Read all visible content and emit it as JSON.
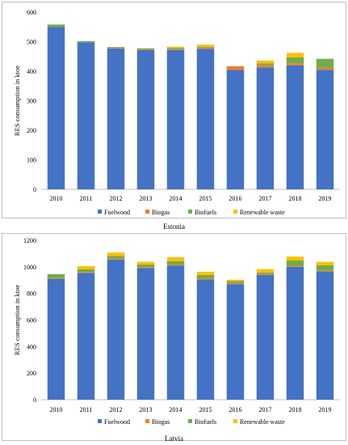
{
  "chart_data": [
    {
      "type": "bar",
      "stacked": true,
      "caption": "Estonia",
      "title": "",
      "xlabel": "",
      "ylabel": "RES consumption in ktoe",
      "ylim": [
        0,
        600
      ],
      "yticks": [
        0,
        100,
        200,
        300,
        400,
        500,
        600
      ],
      "grid": false,
      "legend_position": "bottom",
      "categories": [
        "2010",
        "2011",
        "2012",
        "2013",
        "2014",
        "2015",
        "2016",
        "2017",
        "2018",
        "2019"
      ],
      "series": [
        {
          "name": "Fuelwood",
          "color": "#4472c4",
          "values": [
            550,
            497,
            477,
            472,
            472,
            476,
            404,
            413,
            420,
            405
          ]
        },
        {
          "name": "Biogas",
          "color": "#ed7d31",
          "values": [
            0,
            0,
            2,
            2,
            3,
            4,
            13,
            8,
            7,
            7
          ]
        },
        {
          "name": "Biofuels",
          "color": "#70ad47",
          "values": [
            8,
            5,
            3,
            3,
            4,
            3,
            0,
            5,
            20,
            30
          ]
        },
        {
          "name": "Renewable waste",
          "color": "#ffc000",
          "values": [
            0,
            0,
            0,
            1,
            4,
            7,
            0,
            10,
            15,
            0
          ]
        }
      ]
    },
    {
      "type": "bar",
      "stacked": true,
      "caption": "Latvia",
      "title": "",
      "xlabel": "",
      "ylabel": "RES consumption in ktoe",
      "ylim": [
        0,
        1200
      ],
      "yticks": [
        0,
        200,
        400,
        600,
        800,
        1000,
        1200
      ],
      "grid": false,
      "legend_position": "bottom",
      "categories": [
        "2010",
        "2011",
        "2012",
        "2013",
        "2014",
        "2015",
        "2016",
        "2017",
        "2018",
        "2019"
      ],
      "series": [
        {
          "name": "Fuelwood",
          "color": "#4472c4",
          "values": [
            910,
            955,
            1055,
            990,
            1010,
            905,
            870,
            940,
            1000,
            965
          ]
        },
        {
          "name": "Biogas",
          "color": "#ed7d31",
          "values": [
            5,
            6,
            8,
            8,
            8,
            8,
            8,
            8,
            8,
            8
          ]
        },
        {
          "name": "Biofuels",
          "color": "#70ad47",
          "values": [
            30,
            20,
            20,
            20,
            25,
            25,
            15,
            10,
            40,
            40
          ]
        },
        {
          "name": "Renewable waste",
          "color": "#ffc000",
          "values": [
            0,
            25,
            25,
            20,
            30,
            25,
            10,
            25,
            30,
            25
          ]
        }
      ]
    }
  ]
}
